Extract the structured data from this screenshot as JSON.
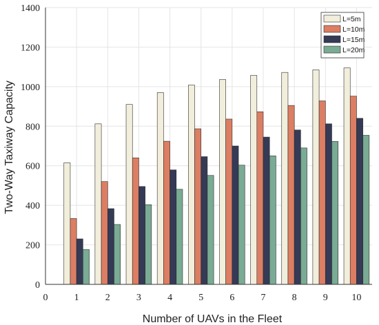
{
  "chart_data": {
    "type": "bar",
    "xlabel": "Number of UAVs in the Fleet",
    "ylabel": "Two-Way Taxiway Capacity",
    "xlim": [
      0,
      10.5
    ],
    "ylim": [
      0,
      1400
    ],
    "x_ticks": [
      0,
      1,
      2,
      3,
      4,
      5,
      6,
      7,
      8,
      9,
      10
    ],
    "y_ticks": [
      0,
      200,
      400,
      600,
      800,
      1000,
      1200,
      1400
    ],
    "categories": [
      1,
      2,
      3,
      4,
      5,
      6,
      7,
      8,
      9,
      10
    ],
    "grid": true,
    "legend_position": "top-right",
    "series": [
      {
        "name": "L=5m",
        "color": "#f2eedc",
        "values": [
          615,
          812,
          910,
          970,
          1008,
          1036,
          1057,
          1072,
          1085,
          1095
        ]
      },
      {
        "name": "L=10m",
        "color": "#dc7e63",
        "values": [
          333,
          520,
          640,
          724,
          787,
          836,
          873,
          905,
          928,
          952
        ]
      },
      {
        "name": "L=15m",
        "color": "#353a56",
        "values": [
          230,
          383,
          495,
          579,
          646,
          700,
          745,
          781,
          812,
          840
        ]
      },
      {
        "name": "L=20m",
        "color": "#7aab94",
        "values": [
          176,
          303,
          403,
          481,
          551,
          603,
          650,
          690,
          723,
          754
        ]
      }
    ]
  }
}
